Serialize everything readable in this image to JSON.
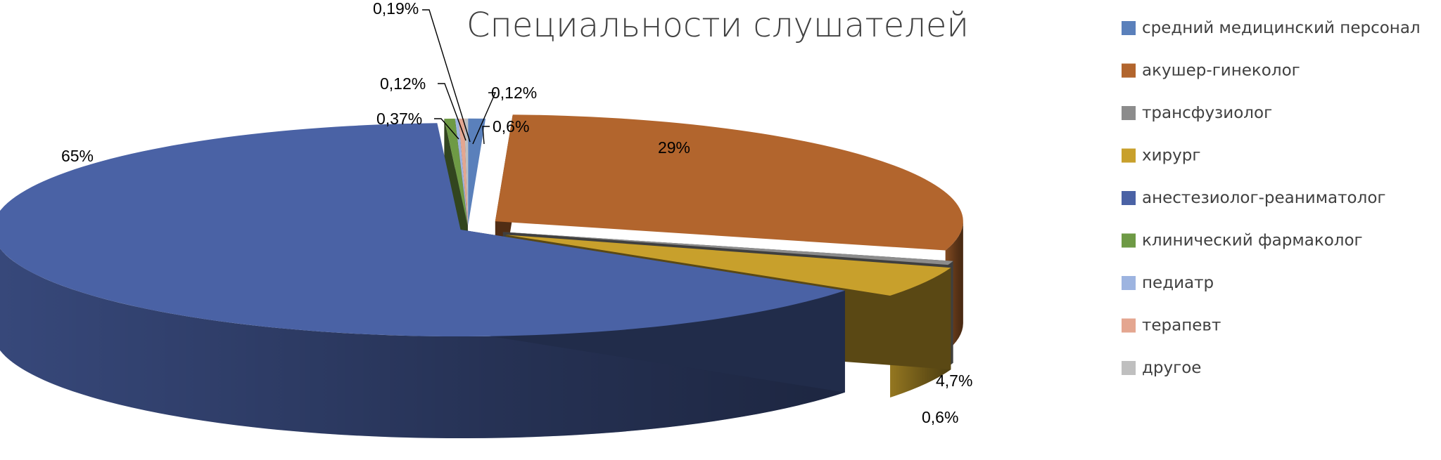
{
  "chart_data": {
    "type": "pie",
    "title": "Специальности слушателей",
    "legend_position": "right",
    "slices": [
      {
        "name": "средний медицинский персонал",
        "value": 0.6,
        "label": "0,6%",
        "color": "#5a80bb"
      },
      {
        "name": "акушер-гинеколог",
        "value": 29,
        "label": "29%",
        "color": "#b2652d"
      },
      {
        "name": "трансфузиолог",
        "value": 0.6,
        "label": "0,6%",
        "color": "#8c8c8c"
      },
      {
        "name": "хирург",
        "value": 4.7,
        "label": "4,7%",
        "color": "#c8a02c"
      },
      {
        "name": "анестезиолог-реаниматолог",
        "value": 65,
        "label": "65%",
        "color": "#4a62a5"
      },
      {
        "name": "клинический фармаколог",
        "value": 0.37,
        "label": "0,37%",
        "color": "#6e9a45"
      },
      {
        "name": "педиатр",
        "value": 0.12,
        "label": "0,12%",
        "color": "#9db4e0"
      },
      {
        "name": "терапевт",
        "value": 0.19,
        "label": "0,19%",
        "color": "#e4a690"
      },
      {
        "name": "другое",
        "value": 0.12,
        "label": "0,12%",
        "color": "#bfbfbf"
      }
    ]
  }
}
